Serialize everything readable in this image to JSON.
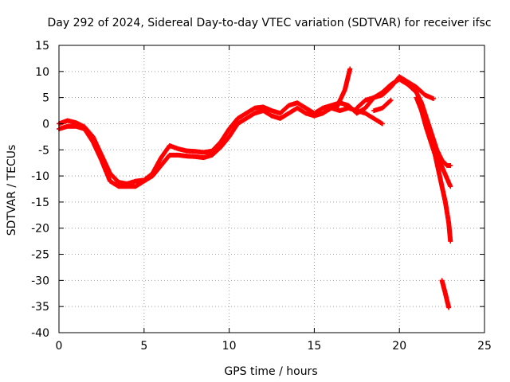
{
  "chart_data": {
    "type": "scatter",
    "title": "Day 292 of 2024, Sidereal Day-to-day VTEC variation (SDTVAR) for receiver ifsc",
    "xlabel": "GPS time / hours",
    "ylabel": "SDTVAR / TECUs",
    "xlim": [
      0,
      25
    ],
    "ylim": [
      -40,
      15
    ],
    "x_ticks": [
      "0",
      "5",
      "10",
      "15",
      "20",
      "25"
    ],
    "y_ticks": [
      "15",
      "10",
      "5",
      "0",
      "-5",
      "-10",
      "-15",
      "-20",
      "-25",
      "-30",
      "-35",
      "-40"
    ],
    "grid": true,
    "marker": "+",
    "color": "#ff0000",
    "series": [
      {
        "points": [
          [
            0,
            0
          ],
          [
            0.5,
            0.6
          ],
          [
            1,
            0.2
          ],
          [
            1.5,
            -0.6
          ],
          [
            2,
            -2.5
          ],
          [
            2.5,
            -6
          ],
          [
            3,
            -9.5
          ],
          [
            3.5,
            -11.2
          ],
          [
            4,
            -11.5
          ],
          [
            4.5,
            -11
          ],
          [
            5,
            -10.8
          ],
          [
            5.5,
            -9.5
          ],
          [
            6,
            -6.5
          ],
          [
            6.5,
            -4.2
          ],
          [
            7,
            -4.8
          ],
          [
            7.5,
            -5.2
          ],
          [
            8,
            -5.3
          ],
          [
            8.5,
            -5.5
          ],
          [
            9,
            -5.2
          ],
          [
            9.5,
            -3.5
          ],
          [
            10,
            -1
          ],
          [
            10.5,
            1
          ],
          [
            11,
            2
          ],
          [
            11.5,
            3
          ],
          [
            12,
            3.2
          ],
          [
            12.5,
            2.5
          ],
          [
            13,
            2
          ],
          [
            13.5,
            3.5
          ],
          [
            14,
            4
          ],
          [
            14.5,
            3
          ],
          [
            15,
            2
          ],
          [
            15.5,
            3
          ],
          [
            16,
            3.5
          ],
          [
            16.5,
            4
          ],
          [
            17,
            3.5
          ],
          [
            17.5,
            2
          ],
          [
            18,
            3
          ],
          [
            18.5,
            5
          ],
          [
            19,
            6
          ],
          [
            19.5,
            7.5
          ],
          [
            20,
            8.5
          ],
          [
            20.5,
            7.5
          ],
          [
            21,
            6
          ],
          [
            21.3,
            4
          ],
          [
            21.6,
            1
          ],
          [
            21.9,
            -2
          ],
          [
            22.2,
            -5
          ],
          [
            22.5,
            -7
          ],
          [
            22.8,
            -8
          ],
          [
            23,
            -8
          ]
        ]
      },
      {
        "points": [
          [
            0,
            -1
          ],
          [
            0.5,
            -0.5
          ],
          [
            1,
            -0.5
          ],
          [
            1.5,
            -1
          ],
          [
            2,
            -3.5
          ],
          [
            2.5,
            -7
          ],
          [
            3,
            -11
          ],
          [
            3.5,
            -12
          ],
          [
            4,
            -12
          ],
          [
            4.5,
            -12
          ],
          [
            5,
            -11
          ],
          [
            5.5,
            -10
          ],
          [
            6,
            -8
          ],
          [
            6.5,
            -6
          ],
          [
            7,
            -6
          ],
          [
            7.5,
            -6.2
          ],
          [
            8,
            -6.3
          ],
          [
            8.5,
            -6.5
          ],
          [
            9,
            -6
          ],
          [
            9.5,
            -4.5
          ],
          [
            10,
            -2.5
          ],
          [
            10.5,
            0
          ],
          [
            11,
            1
          ],
          [
            11.5,
            2
          ],
          [
            12,
            2.5
          ],
          [
            12.5,
            1.5
          ],
          [
            13,
            1
          ],
          [
            13.5,
            2
          ],
          [
            14,
            3
          ],
          [
            14.5,
            2
          ],
          [
            15,
            1.5
          ],
          [
            15.5,
            2
          ],
          [
            16,
            3
          ],
          [
            16.5,
            2.5
          ],
          [
            17,
            3
          ],
          [
            17.5,
            2.5
          ],
          [
            18,
            2
          ],
          [
            18.5,
            1
          ],
          [
            19,
            0
          ]
        ]
      },
      {
        "points": [
          [
            16.3,
            3
          ],
          [
            16.8,
            6.5
          ],
          [
            17.1,
            10.5
          ]
        ]
      },
      {
        "points": [
          [
            17.5,
            3
          ],
          [
            18,
            4.5
          ],
          [
            18.5,
            5
          ],
          [
            19,
            5.5
          ],
          [
            19.5,
            7
          ],
          [
            20,
            9
          ],
          [
            20.5,
            8
          ],
          [
            21,
            7
          ],
          [
            21.5,
            5.5
          ],
          [
            22,
            4.8
          ]
        ]
      },
      {
        "points": [
          [
            18.5,
            2.5
          ],
          [
            19,
            3
          ],
          [
            19.5,
            4.5
          ]
        ]
      },
      {
        "points": [
          [
            21,
            5
          ],
          [
            21.3,
            2.5
          ],
          [
            21.6,
            -1
          ],
          [
            21.9,
            -4
          ],
          [
            22.1,
            -6
          ],
          [
            22.3,
            -9
          ],
          [
            22.5,
            -12
          ],
          [
            22.7,
            -15
          ],
          [
            22.9,
            -19
          ],
          [
            23,
            -22.5
          ]
        ]
      },
      {
        "points": [
          [
            21.5,
            1
          ],
          [
            21.8,
            -2
          ],
          [
            22.2,
            -6
          ],
          [
            22.6,
            -9
          ],
          [
            23,
            -12
          ]
        ]
      },
      {
        "points": [
          [
            22.5,
            -30
          ],
          [
            22.7,
            -32.5
          ],
          [
            22.9,
            -35.2
          ]
        ]
      }
    ]
  }
}
